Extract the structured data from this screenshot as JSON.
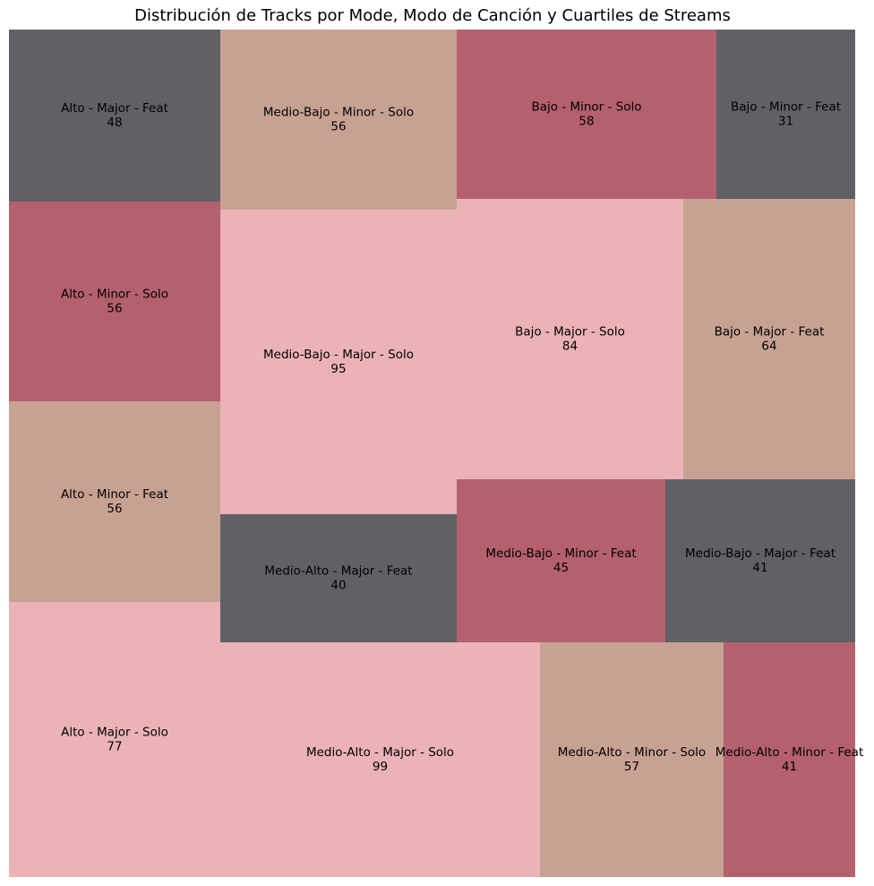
{
  "chart_data": {
    "type": "treemap",
    "title": "Distribución de Tracks por Mode, Modo de Canción y Cuartiles de Streams",
    "colors": {
      "gray": "#606166",
      "rose": "#b4606e",
      "taupe": "#c7a293",
      "pink": "#ebb3b7"
    },
    "tiles": [
      {
        "label": "Alto - Major - Feat",
        "value": 48,
        "color": "#606166"
      },
      {
        "label": "Alto - Minor - Solo",
        "value": 56,
        "color": "#b4606e"
      },
      {
        "label": "Alto - Minor - Feat",
        "value": 56,
        "color": "#c7a293"
      },
      {
        "label": "Alto - Major - Solo",
        "value": 77,
        "color": "#ebb3b7"
      },
      {
        "label": "Medio-Bajo - Minor - Solo",
        "value": 56,
        "color": "#c7a293"
      },
      {
        "label": "Medio-Bajo - Major - Solo",
        "value": 95,
        "color": "#ebb3b7"
      },
      {
        "label": "Medio-Alto - Major - Feat",
        "value": 40,
        "color": "#606166"
      },
      {
        "label": "Bajo - Minor - Solo",
        "value": 58,
        "color": "#b4606e"
      },
      {
        "label": "Bajo - Minor - Feat",
        "value": 31,
        "color": "#606166"
      },
      {
        "label": "Bajo - Major - Solo",
        "value": 84,
        "color": "#ebb3b7"
      },
      {
        "label": "Bajo - Major - Feat",
        "value": 64,
        "color": "#c7a293"
      },
      {
        "label": "Medio-Bajo - Minor - Feat",
        "value": 45,
        "color": "#b4606e"
      },
      {
        "label": "Medio-Bajo - Major - Feat",
        "value": 41,
        "color": "#606166"
      },
      {
        "label": "Medio-Alto - Major - Solo",
        "value": 99,
        "color": "#ebb3b7"
      },
      {
        "label": "Medio-Alto - Minor - Solo",
        "value": 57,
        "color": "#c7a293"
      },
      {
        "label": "Medio-Alto - Minor - Feat",
        "value": 41,
        "color": "#b4606e"
      }
    ]
  }
}
